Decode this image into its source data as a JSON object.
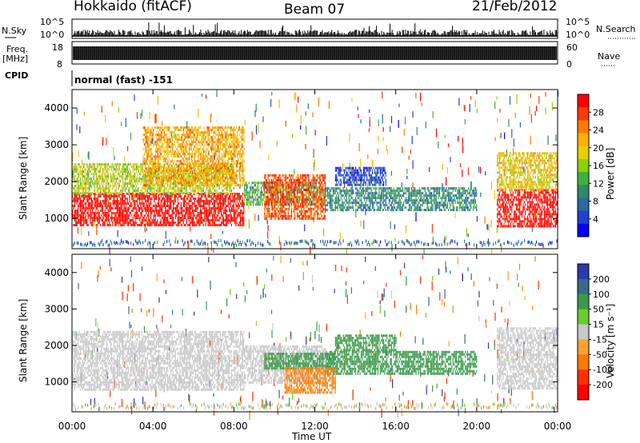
{
  "header": {
    "station": "Hokkaido (fitACF)",
    "beam": "Beam 07",
    "date": "21/Feb/2012"
  },
  "left_labels": {
    "nsky": "N.Sky",
    "freq": "Freq.",
    "freq_unit": "[MHz]",
    "cpid": "CPID"
  },
  "right_labels": {
    "nsearch": "N.Search",
    "nave": "Nave"
  },
  "noise_axis": {
    "left_ticks": [
      "10^5",
      "10^0"
    ],
    "right_ticks": [
      "10^5",
      "10^0"
    ]
  },
  "freq_axis": {
    "left_ticks": [
      "18",
      "8"
    ],
    "right_ticks": [
      "60",
      "0"
    ]
  },
  "cpid_text": "normal (fast) -151",
  "x_axis": {
    "ticks": [
      "00:00",
      "04:00",
      "08:00",
      "12:00",
      "16:00",
      "20:00",
      "00:00"
    ],
    "label": "Time UT"
  },
  "power_colorbar": {
    "label": "Power [dB]",
    "ticks": [
      "28",
      "24",
      "20",
      "16",
      "12",
      "8",
      "4"
    ],
    "colors": [
      "#ff0000",
      "#ff3a00",
      "#ff7a00",
      "#ffb000",
      "#e8d000",
      "#8ed000",
      "#3fb040",
      "#2e8a6a",
      "#2a6aa0",
      "#2040d0",
      "#0000ff"
    ]
  },
  "velocity_colorbar": {
    "label": "Velocity [m s⁻¹]",
    "ticks": [
      "200",
      "100",
      "50",
      "15",
      "-15",
      "-50",
      "-100",
      "-200"
    ],
    "colors": [
      "#2a3aa8",
      "#3a6a8a",
      "#3a9a4a",
      "#6acc30",
      "#c8c8c8",
      "#ffa030",
      "#ff7a00",
      "#ff3000",
      "#ff0000"
    ]
  },
  "colors": {
    "ground_scatter": "#c0c0c0"
  },
  "chart_data": [
    {
      "type": "heatmap",
      "title": "",
      "xlabel": "",
      "ylabel": "Slant Range [km]",
      "quantity": "Power [dB]",
      "xlim": [
        0,
        24
      ],
      "ylim": [
        180,
        4500
      ],
      "yticks": [
        1000,
        2000,
        3000,
        4000
      ],
      "xticks": [
        "00:00",
        "04:00",
        "08:00",
        "12:00",
        "16:00",
        "20:00",
        "00:00"
      ],
      "regions": [
        {
          "t0": 0.0,
          "t1": 8.5,
          "r0": 850,
          "r1": 1700,
          "value": 28
        },
        {
          "t0": 0.0,
          "t1": 8.0,
          "r0": 1700,
          "r1": 2500,
          "value": 16
        },
        {
          "t0": 3.5,
          "t1": 8.5,
          "r0": 1900,
          "r1": 3500,
          "value": 20
        },
        {
          "t0": 8.5,
          "t1": 12.5,
          "r0": 1400,
          "r1": 2000,
          "value": 12
        },
        {
          "t0": 9.5,
          "t1": 12.5,
          "r0": 1000,
          "r1": 2200,
          "value": 24
        },
        {
          "t0": 12.5,
          "t1": 20.0,
          "r0": 1250,
          "r1": 1850,
          "value": 10
        },
        {
          "t0": 13.0,
          "t1": 15.5,
          "r0": 1900,
          "r1": 2400,
          "value": 6
        },
        {
          "t0": 21.0,
          "t1": 24.0,
          "r0": 800,
          "r1": 1800,
          "value": 28
        },
        {
          "t0": 21.0,
          "t1": 24.0,
          "r0": 1800,
          "r1": 2800,
          "value": 18
        }
      ]
    },
    {
      "type": "heatmap",
      "title": "",
      "xlabel": "Time UT",
      "ylabel": "Slant Range [km]",
      "quantity": "Velocity [m s⁻¹]",
      "xlim": [
        0,
        24
      ],
      "ylim": [
        180,
        4500
      ],
      "yticks": [
        1000,
        2000,
        3000,
        4000
      ],
      "xticks": [
        "00:00",
        "04:00",
        "08:00",
        "12:00",
        "16:00",
        "20:00",
        "00:00"
      ],
      "regions": [
        {
          "t0": 0.0,
          "t1": 8.5,
          "r0": 800,
          "r1": 2400,
          "value": 0
        },
        {
          "t0": 8.5,
          "t1": 12.5,
          "r0": 1000,
          "r1": 2000,
          "value": 0
        },
        {
          "t0": 9.5,
          "t1": 13.0,
          "r0": 1350,
          "r1": 1800,
          "value": 60
        },
        {
          "t0": 12.5,
          "t1": 20.0,
          "r0": 1250,
          "r1": 1850,
          "value": 60
        },
        {
          "t0": 13.0,
          "t1": 16.0,
          "r0": 1900,
          "r1": 2300,
          "value": 60
        },
        {
          "t0": 10.5,
          "t1": 13.0,
          "r0": 700,
          "r1": 1400,
          "value": -60
        },
        {
          "t0": 21.0,
          "t1": 24.0,
          "r0": 800,
          "r1": 2500,
          "value": 0
        }
      ]
    }
  ]
}
